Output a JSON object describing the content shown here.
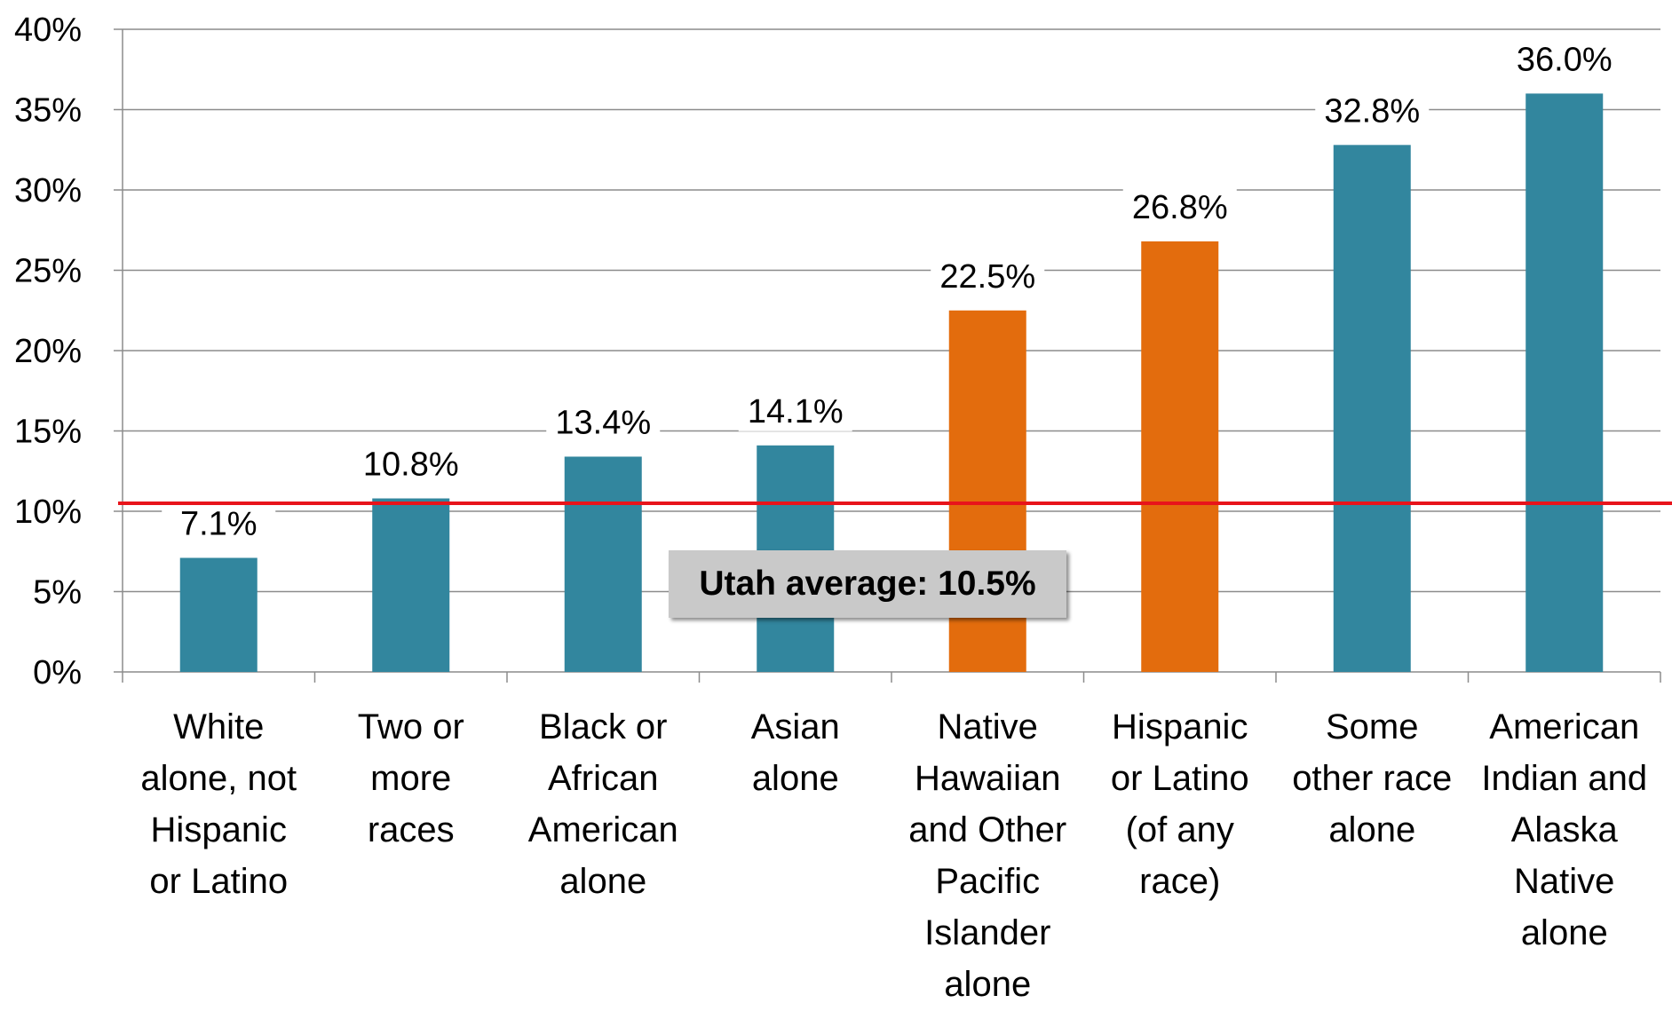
{
  "chart_data": {
    "type": "bar",
    "categories": [
      [
        "White",
        "alone, not",
        "Hispanic",
        "or Latino"
      ],
      [
        "Two or",
        "more",
        "races"
      ],
      [
        "Black or",
        "African",
        "American",
        "alone"
      ],
      [
        "Asian",
        "alone"
      ],
      [
        "Native",
        "Hawaiian",
        "and Other",
        "Pacific",
        "Islander",
        "alone"
      ],
      [
        "Hispanic",
        "or Latino",
        "(of any",
        "race)"
      ],
      [
        "Some",
        "other race",
        "alone"
      ],
      [
        "American",
        "Indian and",
        "Alaska",
        "Native",
        "alone"
      ]
    ],
    "values": [
      7.1,
      10.8,
      13.4,
      14.1,
      22.5,
      26.8,
      32.8,
      36.0
    ],
    "data_labels": [
      "7.1%",
      "10.8%",
      "13.4%",
      "14.1%",
      "22.5%",
      "26.8%",
      "32.8%",
      "36.0%"
    ],
    "bar_colors": [
      "#32869e",
      "#32869e",
      "#32869e",
      "#32869e",
      "#e36c0d",
      "#e36c0d",
      "#32869e",
      "#32869e"
    ],
    "ylim": [
      0,
      40
    ],
    "yticks": [
      0,
      5,
      10,
      15,
      20,
      25,
      30,
      35,
      40
    ],
    "ytick_labels": [
      "0%",
      "5%",
      "10%",
      "15%",
      "20%",
      "25%",
      "30%",
      "35%",
      "40%"
    ],
    "grid": true,
    "reference_line": {
      "value": 10.5,
      "color": "#e8141b",
      "label": "Utah average: 10.5%"
    }
  }
}
